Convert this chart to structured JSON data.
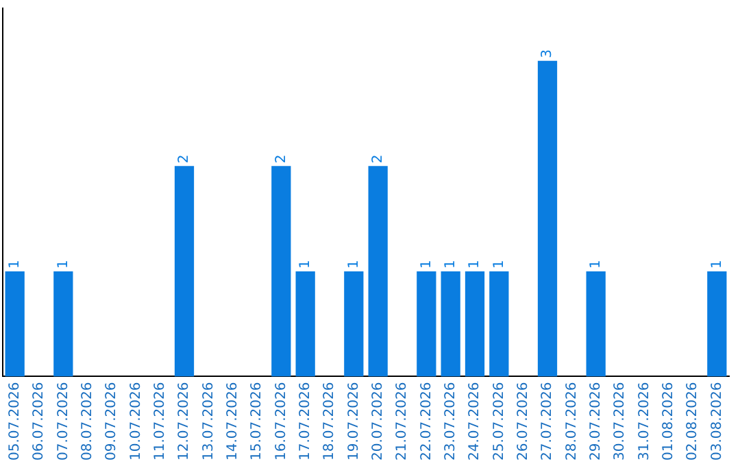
{
  "chart_data": {
    "type": "bar",
    "categories": [
      "05.07.2026",
      "06.07.2026",
      "07.07.2026",
      "08.07.2026",
      "09.07.2026",
      "10.07.2026",
      "11.07.2026",
      "12.07.2026",
      "13.07.2026",
      "14.07.2026",
      "15.07.2026",
      "16.07.2026",
      "17.07.2026",
      "18.07.2026",
      "19.07.2026",
      "20.07.2026",
      "21.07.2026",
      "22.07.2026",
      "23.07.2026",
      "24.07.2026",
      "25.07.2026",
      "26.07.2026",
      "27.07.2026",
      "28.07.2026",
      "29.07.2026",
      "30.07.2026",
      "31.07.2026",
      "01.08.2026",
      "02.08.2026",
      "03.08.2026"
    ],
    "values": [
      1,
      null,
      1,
      null,
      null,
      null,
      null,
      2,
      null,
      null,
      null,
      2,
      1,
      null,
      1,
      2,
      null,
      1,
      1,
      1,
      1,
      null,
      3,
      null,
      1,
      null,
      null,
      null,
      null,
      1
    ],
    "color": "#0a7de0",
    "data_labels": true,
    "tick_labels": "x",
    "grid": false,
    "legend": false
  }
}
